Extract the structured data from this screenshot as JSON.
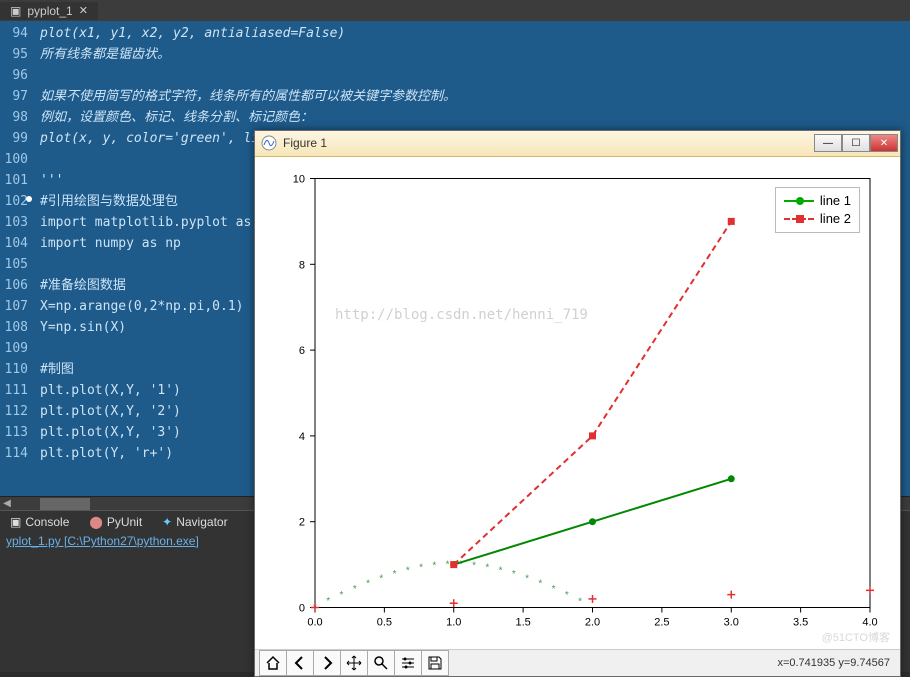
{
  "editor": {
    "tab_label": "pyplot_1",
    "lines": [
      {
        "n": 94,
        "t": "plot(x1, y1, x2, y2, antialiased=False)",
        "italic": true
      },
      {
        "n": 95,
        "t": "所有线条都是锯齿状。",
        "italic": true
      },
      {
        "n": 96,
        "t": "",
        "italic": true
      },
      {
        "n": 97,
        "t": "如果不使用简写的格式字符，线条所有的属性都可以被关键字参数控制。",
        "italic": true
      },
      {
        "n": 98,
        "t": "例如，设置颜色、标记、线条分割、标记颜色：",
        "italic": true
      },
      {
        "n": 99,
        "t": "plot(x, y, color='green', linestyle='dashed', marker='o', markerfacecolor='blue', markersize=12)",
        "italic": true
      },
      {
        "n": 100,
        "t": "",
        "italic": true
      },
      {
        "n": 101,
        "t": "'''",
        "italic": true
      },
      {
        "n": 102,
        "t": "#引用绘图与数据处理包",
        "italic": false
      },
      {
        "n": 103,
        "t": "import matplotlib.pyplot as plt",
        "italic": false
      },
      {
        "n": 104,
        "t": "import numpy as np",
        "italic": false
      },
      {
        "n": 105,
        "t": "",
        "italic": false
      },
      {
        "n": 106,
        "t": "#准备绘图数据",
        "italic": false
      },
      {
        "n": 107,
        "t": "X=np.arange(0,2*np.pi,0.1)",
        "italic": false
      },
      {
        "n": 108,
        "t": "Y=np.sin(X)",
        "italic": false
      },
      {
        "n": 109,
        "t": "",
        "italic": false
      },
      {
        "n": 110,
        "t": "#制图",
        "italic": false
      },
      {
        "n": 111,
        "t": "plt.plot(X,Y, '1')",
        "italic": false
      },
      {
        "n": 112,
        "t": "plt.plot(X,Y, '2')",
        "italic": false
      },
      {
        "n": 113,
        "t": "plt.plot(X,Y, '3')",
        "italic": false
      },
      {
        "n": 114,
        "t": "plt.plot(Y, 'r+')",
        "italic": false
      }
    ]
  },
  "panel": {
    "tabs": {
      "console": "Console",
      "pyunit": "PyUnit",
      "navigator": "Navigator"
    },
    "console_line": "yplot_1.py [C:\\Python27\\python.exe]"
  },
  "figure": {
    "title": "Figure 1",
    "watermark": "http://blog.csdn.net/henni_719",
    "footer_wm": "@51CTO博客",
    "coord": "x=0.741935    y=9.74567",
    "chart": {
      "type": "line",
      "xlim": [
        0,
        4.0
      ],
      "ylim": [
        0,
        10
      ],
      "xticks": [
        0.0,
        0.5,
        1.0,
        1.5,
        2.0,
        2.5,
        3.0,
        3.5,
        4.0
      ],
      "yticks": [
        0,
        2,
        4,
        6,
        8,
        10
      ],
      "background_color": "#ffffff",
      "axis_color": "#000000",
      "tick_fontsize": 11,
      "legend": {
        "position": "top-right",
        "border_color": "#bbbbbb"
      },
      "series": [
        {
          "name": "line 1",
          "color": "#008800",
          "linestyle": "solid",
          "linewidth": 2,
          "marker": "circle",
          "markersize": 7,
          "x": [
            1,
            2,
            3
          ],
          "y": [
            1,
            2,
            3
          ]
        },
        {
          "name": "line 2",
          "color": "#e03030",
          "linestyle": "dashed",
          "linewidth": 2,
          "marker": "square",
          "markersize": 7,
          "x": [
            1,
            2,
            3
          ],
          "y": [
            1,
            4,
            9
          ]
        }
      ],
      "sine_scatter": {
        "color": "#4a9a4a",
        "marker": "star",
        "markersize": 6,
        "x_start": 0,
        "x_end": 6.3,
        "x_step": 0.15,
        "y_formula": "sin(x)",
        "y_offset": 0,
        "y_scale": 1
      },
      "plus_scatter": {
        "color": "#e03030",
        "marker": "plus",
        "markersize": 8,
        "points": [
          [
            0,
            0.0
          ],
          [
            1,
            0.1
          ],
          [
            2,
            0.2
          ],
          [
            3,
            0.3
          ],
          [
            4,
            0.4
          ]
        ]
      }
    }
  }
}
